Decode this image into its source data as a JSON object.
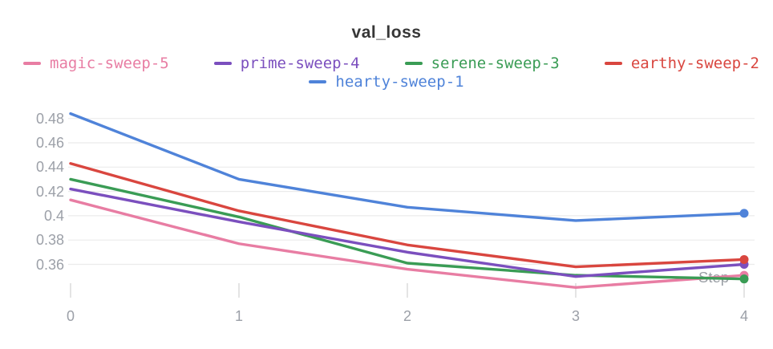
{
  "chart_data": {
    "type": "line",
    "title": "val_loss",
    "xlabel": "Step",
    "x": [
      0,
      1,
      2,
      3,
      4
    ],
    "x_tick_labels": [
      "0",
      "1",
      "2",
      "3",
      "4"
    ],
    "y_tick_labels": [
      "0.48",
      "0.46",
      "0.44",
      "0.42",
      "0.4",
      "0.38",
      "0.36"
    ],
    "xlim": [
      0,
      4
    ],
    "ylim": [
      0.335,
      0.488
    ],
    "grid": "horizontal",
    "legend_position": "top",
    "legend_rows": [
      [
        "magic-sweep-5",
        "prime-sweep-4",
        "serene-sweep-3",
        "earthy-sweep-2"
      ],
      [
        "hearty-sweep-1"
      ]
    ],
    "end_markers": "dot",
    "series": [
      {
        "name": "magic-sweep-5",
        "color": "#E87DA3",
        "values": [
          0.413,
          0.377,
          0.356,
          0.341,
          0.351
        ]
      },
      {
        "name": "prime-sweep-4",
        "color": "#7B4FBE",
        "values": [
          0.422,
          0.395,
          0.37,
          0.35,
          0.36
        ]
      },
      {
        "name": "serene-sweep-3",
        "color": "#3A9C55",
        "values": [
          0.43,
          0.399,
          0.361,
          0.351,
          0.348
        ]
      },
      {
        "name": "earthy-sweep-2",
        "color": "#D9463F",
        "values": [
          0.443,
          0.404,
          0.376,
          0.358,
          0.364
        ]
      },
      {
        "name": "hearty-sweep-1",
        "color": "#4F83D9",
        "values": [
          0.484,
          0.43,
          0.407,
          0.396,
          0.402
        ]
      }
    ]
  }
}
